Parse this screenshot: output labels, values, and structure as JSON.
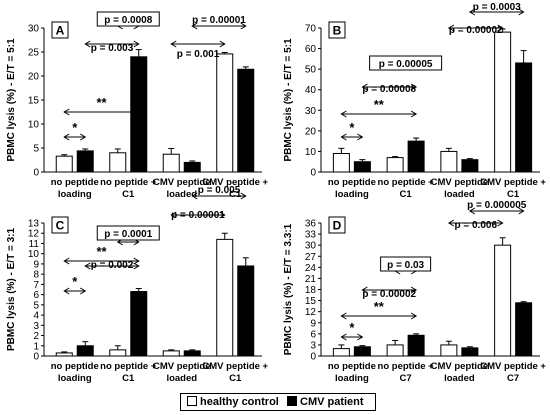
{
  "legend": {
    "items": [
      {
        "label": "healthy control",
        "color": "#ffffff"
      },
      {
        "label": "CMV patient",
        "color": "#000000"
      }
    ]
  },
  "chart_data": [
    {
      "type": "bar",
      "panel": "A",
      "ylabel": "PBMC lysis (%) - E/T = 5:1",
      "ylim": [
        0,
        30
      ],
      "yticks": [
        0,
        5,
        10,
        15,
        20,
        25,
        30
      ],
      "categories": [
        "no peptide loading",
        "no peptide + C1",
        "CMV peptide loaded",
        "CMV peptide + C1"
      ],
      "category_lines": [
        [
          "no peptide",
          "loading"
        ],
        [
          "no peptide +",
          "C1"
        ],
        [
          "CMV peptide",
          "loaded"
        ],
        [
          "CMV peptide +",
          "C1"
        ]
      ],
      "series": [
        {
          "name": "healthy control",
          "values": [
            3.3,
            4.0,
            3.7,
            24.6
          ],
          "errors": [
            0.3,
            0.8,
            1.2,
            0.3
          ]
        },
        {
          "name": "CMV patient",
          "values": [
            4.4,
            24.0,
            2.0,
            21.4
          ],
          "errors": [
            0.4,
            1.5,
            0.3,
            0.5
          ]
        }
      ],
      "annotations": [
        {
          "text": "*",
          "from": [
            0,
            0
          ],
          "to": [
            0,
            1
          ],
          "boxed": false
        },
        {
          "text": "**",
          "from": [
            0,
            0
          ],
          "to": [
            1,
            1
          ],
          "boxed": false
        },
        {
          "text": "p = 0.003",
          "from": [
            0,
            1
          ],
          "to": [
            1,
            1
          ],
          "boxed": false
        },
        {
          "text": "p = 0.0008",
          "from": [
            1,
            0
          ],
          "to": [
            1,
            1
          ],
          "boxed": true
        },
        {
          "text": "p = 0.001",
          "from": [
            2,
            0
          ],
          "to": [
            3,
            0
          ],
          "boxed": false
        },
        {
          "text": "p = 0.00001",
          "from": [
            2,
            1
          ],
          "to": [
            3,
            1
          ],
          "boxed": false
        }
      ]
    },
    {
      "type": "bar",
      "panel": "B",
      "ylabel": "PBMC lysis (%) - E/T = 5:1",
      "ylim": [
        0,
        70
      ],
      "yticks": [
        0,
        10,
        20,
        30,
        40,
        50,
        60,
        70
      ],
      "categories": [
        "no peptide loading",
        "no peptide + C1",
        "CMV peptide loaded",
        "CMV peptide + C1"
      ],
      "category_lines": [
        [
          "no peptide",
          "loading"
        ],
        [
          "no peptide +",
          "C1"
        ],
        [
          "CMV peptide",
          "loaded"
        ],
        [
          "CMV peptide +",
          "C1"
        ]
      ],
      "series": [
        {
          "name": "healthy control",
          "values": [
            9.0,
            7.0,
            10.0,
            68.0
          ],
          "errors": [
            2.5,
            0.5,
            1.5,
            1.5
          ]
        },
        {
          "name": "CMV patient",
          "values": [
            5.0,
            15.0,
            6.0,
            53.0
          ],
          "errors": [
            1.0,
            1.5,
            0.5,
            6.0
          ]
        }
      ],
      "annotations": [
        {
          "text": "*",
          "from": [
            0,
            0
          ],
          "to": [
            0,
            1
          ],
          "boxed": false
        },
        {
          "text": "**",
          "from": [
            0,
            0
          ],
          "to": [
            1,
            1
          ],
          "boxed": false
        },
        {
          "text": "p = 0.00008",
          "from": [
            0,
            1
          ],
          "to": [
            1,
            1
          ],
          "boxed": false
        },
        {
          "text": "p = 0.00005",
          "from": [
            1,
            0
          ],
          "to": [
            1,
            1
          ],
          "boxed": true
        },
        {
          "text": "p = 0.00002",
          "from": [
            2,
            0
          ],
          "to": [
            3,
            0
          ],
          "boxed": false
        },
        {
          "text": "p = 0.0003",
          "from": [
            2,
            1
          ],
          "to": [
            3,
            1
          ],
          "boxed": false
        }
      ]
    },
    {
      "type": "bar",
      "panel": "C",
      "ylabel": "PBMC lysis (%) - E/T = 3:1",
      "ylim": [
        0,
        13
      ],
      "yticks": [
        0,
        1,
        2,
        3,
        4,
        5,
        6,
        7,
        8,
        9,
        10,
        11,
        12,
        13
      ],
      "categories": [
        "no peptide loading",
        "no peptide + C1",
        "CMV peptide loaded",
        "CMV peptide + C1"
      ],
      "category_lines": [
        [
          "no peptide",
          "loading"
        ],
        [
          "no peptide +",
          "C1"
        ],
        [
          "CMV peptide",
          "loaded"
        ],
        [
          "CMV peptide +",
          "C1"
        ]
      ],
      "series": [
        {
          "name": "healthy control",
          "values": [
            0.3,
            0.6,
            0.5,
            11.4
          ],
          "errors": [
            0.1,
            0.4,
            0.1,
            0.6
          ]
        },
        {
          "name": "CMV patient",
          "values": [
            1.0,
            6.3,
            0.5,
            8.8
          ],
          "errors": [
            0.4,
            0.3,
            0.1,
            0.8
          ]
        }
      ],
      "annotations": [
        {
          "text": "*",
          "from": [
            0,
            0
          ],
          "to": [
            0,
            1
          ],
          "boxed": false
        },
        {
          "text": "**",
          "from": [
            0,
            0
          ],
          "to": [
            1,
            1
          ],
          "boxed": false
        },
        {
          "text": "p = 0.002",
          "from": [
            0,
            1
          ],
          "to": [
            1,
            1
          ],
          "boxed": false
        },
        {
          "text": "p = 0.0001",
          "from": [
            1,
            0
          ],
          "to": [
            1,
            1
          ],
          "boxed": true
        },
        {
          "text": "p = 0.00001",
          "from": [
            2,
            0
          ],
          "to": [
            3,
            0
          ],
          "boxed": false
        },
        {
          "text": "p = 0.005",
          "from": [
            2,
            1
          ],
          "to": [
            3,
            1
          ],
          "boxed": false
        }
      ]
    },
    {
      "type": "bar",
      "panel": "D",
      "ylabel": "PBMC lysis (%) - E/T = 3.3:1",
      "ylim": [
        0,
        36
      ],
      "yticks": [
        0,
        3,
        6,
        9,
        12,
        15,
        18,
        21,
        24,
        27,
        30,
        33,
        36
      ],
      "categories": [
        "no peptide loading",
        "no peptide + C7",
        "CMV peptide loaded",
        "CMV peptide + C7"
      ],
      "category_lines": [
        [
          "no peptide",
          "loading"
        ],
        [
          "no peptide +",
          "C7"
        ],
        [
          "CMV peptide",
          "loaded"
        ],
        [
          "CMV peptide +",
          "C7"
        ]
      ],
      "series": [
        {
          "name": "healthy control",
          "values": [
            2.0,
            3.0,
            3.0,
            30.0
          ],
          "errors": [
            1.0,
            1.2,
            1.0,
            2.0
          ]
        },
        {
          "name": "CMV patient",
          "values": [
            2.5,
            5.6,
            2.2,
            14.4
          ],
          "errors": [
            0.3,
            0.4,
            0.3,
            0.3
          ]
        }
      ],
      "annotations": [
        {
          "text": "*",
          "from": [
            0,
            0
          ],
          "to": [
            0,
            1
          ],
          "boxed": false
        },
        {
          "text": "**",
          "from": [
            0,
            0
          ],
          "to": [
            1,
            1
          ],
          "boxed": false
        },
        {
          "text": "p = 0.00002",
          "from": [
            0,
            1
          ],
          "to": [
            1,
            1
          ],
          "boxed": false
        },
        {
          "text": "p = 0.03",
          "from": [
            1,
            0
          ],
          "to": [
            1,
            1
          ],
          "boxed": true
        },
        {
          "text": "p = 0.006",
          "from": [
            2,
            0
          ],
          "to": [
            3,
            0
          ],
          "boxed": false
        },
        {
          "text": "p = 0.000005",
          "from": [
            2,
            1
          ],
          "to": [
            3,
            1
          ],
          "boxed": false
        }
      ]
    }
  ]
}
